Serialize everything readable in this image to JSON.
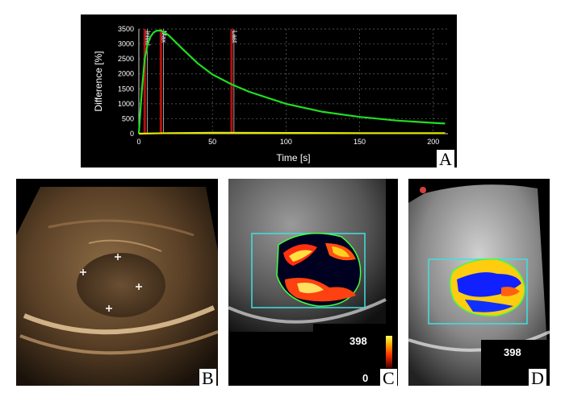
{
  "panels": {
    "a": {
      "letter": "A",
      "chart_data": {
        "type": "line",
        "xlabel": "Time [s]",
        "ylabel": "Difference [%]",
        "xlim": [
          0,
          210
        ],
        "ylim": [
          0,
          3500
        ],
        "xticks": [
          "0",
          "50",
          "100",
          "150",
          "200"
        ],
        "yticks": [
          "0",
          "500",
          "1000",
          "1500",
          "2000",
          "2500",
          "3000",
          "3500"
        ],
        "grid": true,
        "markers": [
          {
            "label": "Initial",
            "x": 4
          },
          {
            "label": "Max",
            "x": 15
          },
          {
            "label": "Last",
            "x": 63
          }
        ],
        "series": [
          {
            "color": "#22dd22",
            "x": [
              0,
              2,
              4,
              6,
              8,
              10,
              12,
              15,
              20,
              30,
              40,
              50,
              63,
              75,
              100,
              125,
              150,
              175,
              200,
              208
            ],
            "y": [
              0,
              1400,
              2500,
              3000,
              3250,
              3380,
              3440,
              3450,
              3300,
              2820,
              2350,
              1980,
              1650,
              1400,
              1000,
              730,
              560,
              440,
              360,
              340
            ]
          },
          {
            "color": "#e6e600",
            "x": [
              0,
              20,
              50,
              100,
              150,
              200,
              208
            ],
            "y": [
              0,
              20,
              30,
              25,
              20,
              15,
              15
            ]
          }
        ]
      }
    },
    "b": {
      "letter": "B"
    },
    "c": {
      "letter": "C",
      "value_top": "398",
      "value_bottom": "0"
    },
    "d": {
      "letter": "D",
      "value_top": "398"
    }
  }
}
